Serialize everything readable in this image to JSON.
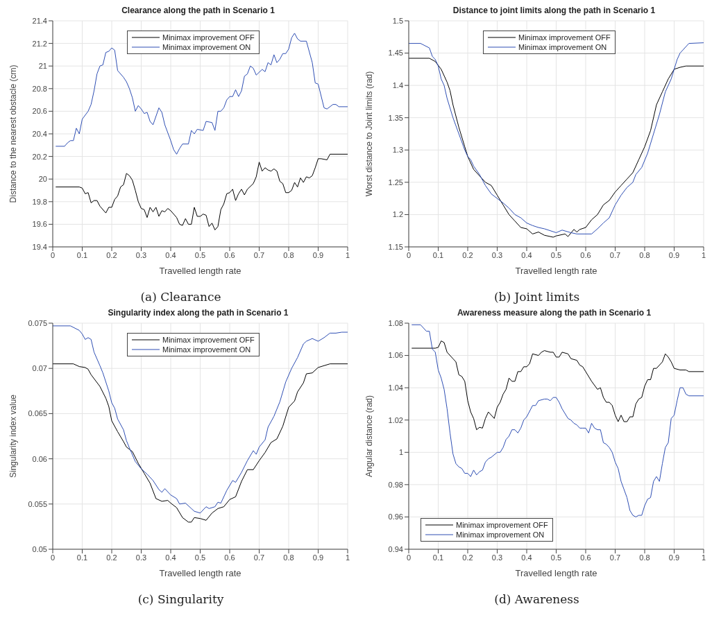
{
  "chart_data": [
    {
      "type": "line",
      "title": "Clearance along the path in Scenario 1",
      "xlabel": "Travelled length rate",
      "ylabel": "Distance to the nearest obstacle (cm)",
      "annotations": [
        "(a)  Clearance"
      ],
      "xlim": [
        0,
        1
      ],
      "xticks": [
        0,
        0.1,
        0.2,
        0.3,
        0.4,
        0.5,
        0.6,
        0.7,
        0.8,
        0.9,
        1
      ],
      "ylim": [
        19.4,
        21.4
      ],
      "yticks": [
        19.4,
        19.6,
        19.8,
        20,
        20.2,
        20.4,
        20.6,
        20.8,
        21,
        21.2,
        21.4
      ],
      "grid": true,
      "legend": "top",
      "marker": "none",
      "line_style": "solid",
      "series": [
        {
          "name": "Minimax improvement OFF",
          "color": "#000000",
          "x": [
            0.01,
            0.09,
            0.1,
            0.11,
            0.12,
            0.13,
            0.14,
            0.15,
            0.16,
            0.18,
            0.19,
            0.2,
            0.21,
            0.22,
            0.23,
            0.24,
            0.25,
            0.26,
            0.27,
            0.28,
            0.29,
            0.3,
            0.31,
            0.32,
            0.33,
            0.34,
            0.35,
            0.36,
            0.37,
            0.38,
            0.39,
            0.4,
            0.42,
            0.43,
            0.44,
            0.45,
            0.46,
            0.47,
            0.48,
            0.49,
            0.5,
            0.51,
            0.52,
            0.53,
            0.54,
            0.55,
            0.56,
            0.57,
            0.58,
            0.59,
            0.6,
            0.61,
            0.62,
            0.63,
            0.64,
            0.65,
            0.66,
            0.68,
            0.69,
            0.7,
            0.71,
            0.72,
            0.73,
            0.74,
            0.75,
            0.76,
            0.77,
            0.78,
            0.79,
            0.8,
            0.81,
            0.82,
            0.83,
            0.84,
            0.85,
            0.86,
            0.87,
            0.88,
            0.89,
            0.9,
            0.91,
            0.93,
            0.94,
            1.0
          ],
          "values": [
            19.93,
            19.93,
            19.92,
            19.87,
            19.88,
            19.79,
            19.81,
            19.81,
            19.76,
            19.7,
            19.75,
            19.75,
            19.82,
            19.85,
            19.93,
            19.95,
            20.05,
            20.03,
            19.99,
            19.9,
            19.8,
            19.74,
            19.73,
            19.66,
            19.75,
            19.71,
            19.75,
            19.67,
            19.72,
            19.71,
            19.74,
            19.72,
            19.66,
            19.6,
            19.59,
            19.65,
            19.6,
            19.6,
            19.75,
            19.67,
            19.67,
            19.69,
            19.68,
            19.58,
            19.61,
            19.55,
            19.58,
            19.73,
            19.78,
            19.87,
            19.88,
            19.91,
            19.81,
            19.87,
            19.91,
            19.86,
            19.91,
            19.96,
            20.02,
            20.15,
            20.07,
            20.1,
            20.08,
            20.07,
            20.09,
            20.07,
            19.98,
            19.96,
            19.88,
            19.88,
            19.9,
            19.97,
            19.93,
            20.01,
            19.97,
            20.02,
            20.01,
            20.03,
            20.1,
            20.18,
            20.18,
            20.17,
            20.22,
            20.22
          ]
        },
        {
          "name": "Minimax improvement ON",
          "color": "#2f4fb4",
          "x": [
            0.01,
            0.04,
            0.05,
            0.06,
            0.07,
            0.08,
            0.09,
            0.1,
            0.12,
            0.13,
            0.14,
            0.15,
            0.16,
            0.17,
            0.18,
            0.19,
            0.2,
            0.21,
            0.22,
            0.24,
            0.25,
            0.26,
            0.27,
            0.28,
            0.29,
            0.3,
            0.31,
            0.32,
            0.33,
            0.34,
            0.36,
            0.37,
            0.38,
            0.4,
            0.41,
            0.42,
            0.43,
            0.44,
            0.46,
            0.47,
            0.48,
            0.49,
            0.51,
            0.52,
            0.54,
            0.55,
            0.56,
            0.57,
            0.58,
            0.59,
            0.6,
            0.61,
            0.62,
            0.63,
            0.64,
            0.65,
            0.66,
            0.67,
            0.68,
            0.69,
            0.71,
            0.72,
            0.73,
            0.74,
            0.75,
            0.76,
            0.77,
            0.78,
            0.79,
            0.8,
            0.81,
            0.82,
            0.83,
            0.84,
            0.86,
            0.88,
            0.89,
            0.9,
            0.92,
            0.93,
            0.95,
            0.96,
            0.97,
            1.0
          ],
          "values": [
            20.29,
            20.29,
            20.32,
            20.34,
            20.34,
            20.45,
            20.4,
            20.53,
            20.6,
            20.66,
            20.78,
            20.93,
            21.0,
            21.01,
            21.12,
            21.13,
            21.16,
            21.14,
            20.96,
            20.9,
            20.86,
            20.8,
            20.72,
            20.6,
            20.65,
            20.62,
            20.58,
            20.59,
            20.51,
            20.48,
            20.63,
            20.59,
            20.48,
            20.34,
            20.26,
            20.22,
            20.27,
            20.31,
            20.31,
            20.43,
            20.4,
            20.44,
            20.43,
            20.51,
            20.5,
            20.43,
            20.6,
            20.6,
            20.63,
            20.7,
            20.73,
            20.73,
            20.79,
            20.73,
            20.78,
            20.91,
            20.93,
            21.0,
            20.98,
            20.92,
            20.97,
            20.95,
            21.03,
            21.01,
            21.1,
            21.03,
            21.06,
            21.11,
            21.11,
            21.15,
            21.25,
            21.29,
            21.24,
            21.22,
            21.22,
            21.03,
            20.85,
            20.84,
            20.63,
            20.62,
            20.66,
            20.66,
            20.64,
            20.64
          ]
        }
      ]
    },
    {
      "type": "line",
      "title": "Distance to joint limits along the path in Scenario 1",
      "xlabel": "Travelled length rate",
      "ylabel": "Worst distance to Joint limits (rad)",
      "annotations": [
        "(b)  Joint limits"
      ],
      "xlim": [
        0,
        1
      ],
      "xticks": [
        0,
        0.1,
        0.2,
        0.3,
        0.4,
        0.5,
        0.6,
        0.7,
        0.8,
        0.9,
        1
      ],
      "ylim": [
        1.15,
        1.5
      ],
      "yticks": [
        1.15,
        1.2,
        1.25,
        1.3,
        1.35,
        1.4,
        1.45,
        1.5
      ],
      "grid": true,
      "legend": "top",
      "marker": "none",
      "line_style": "solid",
      "series": [
        {
          "name": "Minimax improvement OFF",
          "color": "#000000",
          "x": [
            0,
            0.07,
            0.09,
            0.11,
            0.13,
            0.14,
            0.15,
            0.17,
            0.19,
            0.2,
            0.22,
            0.24,
            0.26,
            0.28,
            0.3,
            0.32,
            0.34,
            0.36,
            0.38,
            0.4,
            0.42,
            0.44,
            0.46,
            0.49,
            0.5,
            0.53,
            0.54,
            0.56,
            0.57,
            0.58,
            0.6,
            0.62,
            0.64,
            0.66,
            0.68,
            0.7,
            0.72,
            0.74,
            0.76,
            0.78,
            0.8,
            0.82,
            0.84,
            0.86,
            0.88,
            0.9,
            0.92,
            0.94,
            1.0
          ],
          "values": [
            1.442,
            1.442,
            1.437,
            1.425,
            1.405,
            1.392,
            1.37,
            1.335,
            1.305,
            1.29,
            1.27,
            1.26,
            1.25,
            1.245,
            1.23,
            1.215,
            1.2,
            1.19,
            1.18,
            1.178,
            1.17,
            1.173,
            1.168,
            1.165,
            1.167,
            1.17,
            1.166,
            1.177,
            1.173,
            1.177,
            1.18,
            1.192,
            1.2,
            1.215,
            1.222,
            1.235,
            1.245,
            1.255,
            1.265,
            1.285,
            1.305,
            1.33,
            1.37,
            1.39,
            1.41,
            1.425,
            1.428,
            1.43,
            1.43
          ]
        },
        {
          "name": "Minimax improvement ON",
          "color": "#2f4fb4",
          "x": [
            0,
            0.04,
            0.07,
            0.08,
            0.09,
            0.1,
            0.11,
            0.12,
            0.13,
            0.15,
            0.17,
            0.19,
            0.2,
            0.21,
            0.22,
            0.24,
            0.26,
            0.28,
            0.3,
            0.32,
            0.34,
            0.36,
            0.38,
            0.4,
            0.42,
            0.44,
            0.46,
            0.48,
            0.5,
            0.52,
            0.55,
            0.57,
            0.6,
            0.62,
            0.64,
            0.66,
            0.68,
            0.7,
            0.72,
            0.74,
            0.76,
            0.77,
            0.79,
            0.81,
            0.83,
            0.85,
            0.87,
            0.89,
            0.91,
            0.92,
            0.93,
            0.95,
            1.0
          ],
          "values": [
            1.465,
            1.465,
            1.458,
            1.445,
            1.44,
            1.43,
            1.41,
            1.4,
            1.38,
            1.35,
            1.325,
            1.3,
            1.29,
            1.285,
            1.275,
            1.262,
            1.245,
            1.232,
            1.225,
            1.218,
            1.21,
            1.2,
            1.195,
            1.187,
            1.183,
            1.18,
            1.178,
            1.175,
            1.172,
            1.176,
            1.172,
            1.17,
            1.17,
            1.17,
            1.178,
            1.187,
            1.195,
            1.215,
            1.23,
            1.242,
            1.25,
            1.262,
            1.273,
            1.295,
            1.325,
            1.355,
            1.39,
            1.41,
            1.44,
            1.45,
            1.455,
            1.465,
            1.466
          ]
        }
      ]
    },
    {
      "type": "line",
      "title": "Singularity index along the path in Scenario 1",
      "xlabel": "Travelled length rate",
      "ylabel": "Singularity index value",
      "annotations": [
        "(c)  Singularity"
      ],
      "xlim": [
        0,
        1
      ],
      "xticks": [
        0,
        0.1,
        0.2,
        0.3,
        0.4,
        0.5,
        0.6,
        0.7,
        0.8,
        0.9,
        1
      ],
      "ylim": [
        0.05,
        0.075
      ],
      "yticks": [
        0.05,
        0.055,
        0.06,
        0.065,
        0.07,
        0.075
      ],
      "grid": true,
      "legend": "top",
      "marker": "none",
      "line_style": "solid",
      "series": [
        {
          "name": "Minimax improvement OFF",
          "color": "#000000",
          "x": [
            0,
            0.07,
            0.09,
            0.11,
            0.12,
            0.13,
            0.16,
            0.18,
            0.19,
            0.2,
            0.22,
            0.24,
            0.25,
            0.27,
            0.29,
            0.31,
            0.33,
            0.35,
            0.37,
            0.39,
            0.4,
            0.42,
            0.44,
            0.46,
            0.47,
            0.48,
            0.5,
            0.52,
            0.54,
            0.56,
            0.58,
            0.6,
            0.62,
            0.64,
            0.66,
            0.68,
            0.7,
            0.72,
            0.74,
            0.76,
            0.78,
            0.8,
            0.82,
            0.83,
            0.85,
            0.86,
            0.88,
            0.9,
            0.92,
            0.94,
            1.0
          ],
          "values": [
            0.0705,
            0.0705,
            0.0702,
            0.0701,
            0.0699,
            0.0693,
            0.068,
            0.0667,
            0.0658,
            0.0642,
            0.063,
            0.0619,
            0.0613,
            0.0608,
            0.0595,
            0.0584,
            0.0573,
            0.0556,
            0.0553,
            0.0554,
            0.0551,
            0.0546,
            0.0535,
            0.053,
            0.053,
            0.0535,
            0.0534,
            0.0532,
            0.054,
            0.0545,
            0.0547,
            0.0555,
            0.0558,
            0.0575,
            0.0588,
            0.0588,
            0.0598,
            0.0607,
            0.0618,
            0.0622,
            0.0636,
            0.0657,
            0.0664,
            0.0674,
            0.0684,
            0.0694,
            0.0695,
            0.0701,
            0.0703,
            0.0705,
            0.0705
          ]
        },
        {
          "name": "Minimax improvement ON",
          "color": "#2f4fb4",
          "x": [
            0,
            0.06,
            0.09,
            0.1,
            0.11,
            0.12,
            0.13,
            0.14,
            0.16,
            0.17,
            0.19,
            0.2,
            0.21,
            0.22,
            0.24,
            0.25,
            0.26,
            0.28,
            0.3,
            0.32,
            0.34,
            0.36,
            0.37,
            0.38,
            0.4,
            0.42,
            0.43,
            0.45,
            0.47,
            0.48,
            0.5,
            0.52,
            0.53,
            0.55,
            0.56,
            0.57,
            0.59,
            0.61,
            0.62,
            0.64,
            0.66,
            0.68,
            0.69,
            0.7,
            0.72,
            0.73,
            0.75,
            0.77,
            0.79,
            0.81,
            0.83,
            0.85,
            0.86,
            0.88,
            0.9,
            0.92,
            0.94,
            0.96,
            0.98,
            1.0
          ],
          "values": [
            0.0747,
            0.0747,
            0.0742,
            0.0738,
            0.0732,
            0.0734,
            0.0732,
            0.0718,
            0.0703,
            0.0695,
            0.0675,
            0.0662,
            0.0656,
            0.0644,
            0.0632,
            0.062,
            0.0612,
            0.0597,
            0.0589,
            0.0583,
            0.0576,
            0.0566,
            0.0563,
            0.0567,
            0.056,
            0.0556,
            0.055,
            0.0551,
            0.0545,
            0.0542,
            0.054,
            0.0547,
            0.0545,
            0.0547,
            0.0552,
            0.0551,
            0.0565,
            0.0576,
            0.0574,
            0.0585,
            0.0598,
            0.0609,
            0.0605,
            0.0613,
            0.0621,
            0.0635,
            0.0647,
            0.0663,
            0.0685,
            0.07,
            0.0712,
            0.0727,
            0.073,
            0.0733,
            0.073,
            0.0734,
            0.0739,
            0.0739,
            0.074,
            0.074
          ]
        }
      ]
    },
    {
      "type": "line",
      "title": "Awareness measure along the path in Scenario 1",
      "xlabel": "Travelled length rate",
      "ylabel": "Angular distance (rad)",
      "annotations": [
        "(d)  Awareness"
      ],
      "xlim": [
        0,
        1
      ],
      "xticks": [
        0,
        0.1,
        0.2,
        0.3,
        0.4,
        0.5,
        0.6,
        0.7,
        0.8,
        0.9,
        1
      ],
      "ylim": [
        0.94,
        1.08
      ],
      "yticks": [
        0.94,
        0.96,
        0.98,
        1,
        1.02,
        1.04,
        1.06,
        1.08
      ],
      "grid": true,
      "legend": "bottom left",
      "marker": "none",
      "line_style": "solid",
      "series": [
        {
          "name": "Minimax improvement OFF",
          "color": "#000000",
          "x": [
            0.01,
            0.09,
            0.1,
            0.11,
            0.12,
            0.13,
            0.15,
            0.16,
            0.17,
            0.18,
            0.19,
            0.2,
            0.21,
            0.22,
            0.23,
            0.24,
            0.25,
            0.26,
            0.27,
            0.29,
            0.3,
            0.31,
            0.32,
            0.33,
            0.34,
            0.35,
            0.36,
            0.37,
            0.38,
            0.39,
            0.4,
            0.41,
            0.42,
            0.44,
            0.45,
            0.46,
            0.48,
            0.49,
            0.5,
            0.51,
            0.52,
            0.54,
            0.55,
            0.57,
            0.58,
            0.59,
            0.6,
            0.62,
            0.64,
            0.65,
            0.66,
            0.67,
            0.68,
            0.69,
            0.7,
            0.71,
            0.72,
            0.73,
            0.74,
            0.75,
            0.76,
            0.77,
            0.78,
            0.79,
            0.8,
            0.81,
            0.82,
            0.83,
            0.84,
            0.86,
            0.87,
            0.88,
            0.89,
            0.9,
            0.92,
            0.94,
            0.95,
            1.0
          ],
          "values": [
            1.0645,
            1.0645,
            1.065,
            1.069,
            1.068,
            1.062,
            1.058,
            1.056,
            1.048,
            1.047,
            1.044,
            1.032,
            1.025,
            1.021,
            1.014,
            1.0155,
            1.015,
            1.021,
            1.025,
            1.021,
            1.028,
            1.031,
            1.036,
            1.039,
            1.046,
            1.044,
            1.044,
            1.05,
            1.05,
            1.053,
            1.053,
            1.055,
            1.061,
            1.06,
            1.062,
            1.063,
            1.062,
            1.062,
            1.059,
            1.059,
            1.062,
            1.061,
            1.058,
            1.057,
            1.054,
            1.053,
            1.05,
            1.044,
            1.039,
            1.04,
            1.034,
            1.031,
            1.031,
            1.029,
            1.023,
            1.019,
            1.023,
            1.019,
            1.019,
            1.022,
            1.022,
            1.03,
            1.033,
            1.034,
            1.041,
            1.045,
            1.045,
            1.052,
            1.052,
            1.056,
            1.061,
            1.059,
            1.056,
            1.052,
            1.051,
            1.051,
            1.05,
            1.05
          ]
        },
        {
          "name": "Minimax improvement ON",
          "color": "#2f4fb4",
          "x": [
            0.01,
            0.04,
            0.05,
            0.06,
            0.07,
            0.08,
            0.09,
            0.1,
            0.11,
            0.12,
            0.13,
            0.14,
            0.15,
            0.16,
            0.17,
            0.18,
            0.19,
            0.2,
            0.21,
            0.22,
            0.23,
            0.24,
            0.25,
            0.26,
            0.27,
            0.28,
            0.3,
            0.31,
            0.32,
            0.33,
            0.34,
            0.35,
            0.36,
            0.37,
            0.38,
            0.39,
            0.4,
            0.42,
            0.43,
            0.44,
            0.46,
            0.47,
            0.48,
            0.49,
            0.5,
            0.51,
            0.52,
            0.54,
            0.55,
            0.56,
            0.57,
            0.58,
            0.59,
            0.6,
            0.61,
            0.62,
            0.63,
            0.64,
            0.65,
            0.66,
            0.67,
            0.68,
            0.69,
            0.7,
            0.71,
            0.72,
            0.73,
            0.74,
            0.75,
            0.76,
            0.77,
            0.78,
            0.79,
            0.8,
            0.81,
            0.82,
            0.83,
            0.84,
            0.85,
            0.86,
            0.87,
            0.88,
            0.89,
            0.9,
            0.91,
            0.92,
            0.93,
            0.94,
            0.95,
            1.0
          ],
          "values": [
            1.079,
            1.079,
            1.077,
            1.075,
            1.075,
            1.064,
            1.062,
            1.051,
            1.046,
            1.039,
            1.027,
            1.012,
            0.999,
            0.993,
            0.991,
            0.99,
            0.987,
            0.987,
            0.985,
            0.989,
            0.986,
            0.988,
            0.989,
            0.994,
            0.996,
            0.997,
            1.0,
            1.0,
            1.003,
            1.008,
            1.01,
            1.014,
            1.014,
            1.012,
            1.015,
            1.02,
            1.022,
            1.029,
            1.029,
            1.032,
            1.033,
            1.033,
            1.032,
            1.034,
            1.034,
            1.031,
            1.027,
            1.021,
            1.02,
            1.018,
            1.017,
            1.015,
            1.015,
            1.015,
            1.012,
            1.018,
            1.015,
            1.014,
            1.014,
            1.006,
            1.005,
            1.003,
            1.0,
            0.994,
            0.99,
            0.982,
            0.977,
            0.972,
            0.964,
            0.961,
            0.96,
            0.961,
            0.961,
            0.967,
            0.971,
            0.972,
            0.982,
            0.985,
            0.982,
            0.993,
            1.003,
            1.006,
            1.021,
            1.023,
            1.032,
            1.04,
            1.04,
            1.036,
            1.035,
            1.035
          ]
        }
      ]
    }
  ]
}
